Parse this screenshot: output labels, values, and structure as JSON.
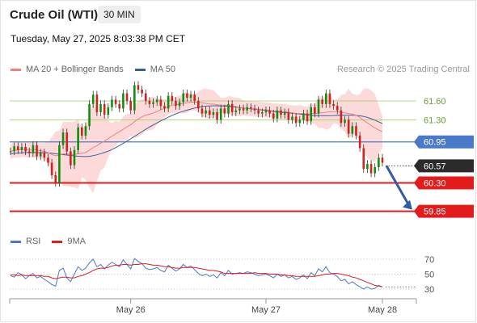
{
  "header": {
    "title": "Crude Oil (WTI)",
    "interval": "30 MIN",
    "datetime": "Tuesday, May 27, 2025 8:03:38 PM CET",
    "credit": "Research © 2025 Trading Central"
  },
  "legend": {
    "ma20": "MA 20 + Bollinger Bands",
    "ma50": "MA 50",
    "rsi": "RSI",
    "ma9": "9MA"
  },
  "colors": {
    "ma20": "#f08080",
    "ma50": "#3a5e9c",
    "band": "#fbd3d3",
    "resistance": "#9acd5c",
    "pivot": "#4a79c9",
    "support": "#e31b1b",
    "current": "#2b2b2b",
    "arrow": "#2d5ea7",
    "up": "#0e8f0e",
    "down": "#d0231d",
    "rsi": "#4a79c9"
  },
  "chart_data": [
    {
      "type": "candlestick",
      "x_ticks": [
        "May 26",
        "May 27",
        "May 28"
      ],
      "ylim": [
        59.55,
        61.92
      ],
      "levels": [
        {
          "value": 61.6,
          "label": "61.60",
          "kind": "resistance"
        },
        {
          "value": 61.3,
          "label": "61.30",
          "kind": "resistance"
        },
        {
          "value": 60.95,
          "label": "60.95",
          "kind": "pivot"
        },
        {
          "value": 60.57,
          "label": "60.57",
          "kind": "current"
        },
        {
          "value": 60.3,
          "label": "60.30",
          "kind": "support"
        },
        {
          "value": 59.85,
          "label": "59.85",
          "kind": "support"
        }
      ],
      "forecast_arrow": {
        "from": 60.57,
        "to": 59.85
      },
      "closes": [
        60.8,
        60.88,
        60.82,
        60.87,
        60.8,
        60.77,
        60.9,
        60.72,
        60.78,
        60.7,
        60.62,
        60.42,
        60.3,
        60.9,
        61.1,
        60.8,
        60.58,
        60.82,
        61.18,
        61.05,
        61.2,
        61.55,
        61.7,
        61.42,
        61.55,
        61.38,
        61.5,
        61.62,
        61.55,
        61.48,
        61.72,
        61.6,
        61.45,
        61.85,
        61.78,
        61.72,
        61.6,
        61.55,
        61.58,
        61.62,
        61.52,
        61.48,
        61.68,
        61.6,
        61.52,
        61.58,
        61.72,
        61.65,
        61.7,
        61.6,
        61.48,
        61.4,
        61.45,
        61.38,
        61.42,
        61.3,
        61.48,
        61.4,
        61.55,
        61.42,
        61.45,
        61.48,
        61.45,
        61.5,
        61.48,
        61.45,
        61.4,
        61.42,
        61.45,
        61.4,
        61.32,
        61.45,
        61.38,
        61.42,
        61.3,
        61.35,
        61.25,
        61.3,
        61.4,
        61.28,
        61.5,
        61.4,
        61.62,
        61.55,
        61.72,
        61.55,
        61.52,
        61.45,
        61.25,
        61.3,
        61.08,
        61.2,
        61.05,
        60.85,
        60.52,
        60.6,
        60.45,
        60.55,
        60.7,
        60.62
      ],
      "ma20": [
        60.8,
        60.82,
        60.82,
        60.83,
        60.83,
        60.82,
        60.83,
        60.82,
        60.81,
        60.8,
        60.78,
        60.75,
        60.73,
        60.74,
        60.76,
        60.76,
        60.75,
        60.75,
        60.76,
        60.77,
        60.78,
        60.82,
        60.86,
        60.89,
        60.93,
        60.96,
        61.0,
        61.04,
        61.08,
        61.11,
        61.15,
        61.19,
        61.22,
        61.27,
        61.31,
        61.35,
        61.37,
        61.39,
        61.41,
        61.43,
        61.46,
        61.48,
        61.51,
        61.53,
        61.54,
        61.55,
        61.56,
        61.57,
        61.58,
        61.58,
        61.58,
        61.57,
        61.56,
        61.55,
        61.55,
        61.54,
        61.53,
        61.53,
        61.53,
        61.52,
        61.51,
        61.5,
        61.49,
        61.48,
        61.48,
        61.47,
        61.47,
        61.46,
        61.46,
        61.45,
        61.44,
        61.44,
        61.43,
        61.43,
        61.42,
        61.41,
        61.4,
        61.4,
        61.4,
        61.39,
        61.4,
        61.4,
        61.41,
        61.41,
        61.42,
        61.43,
        61.43,
        61.43,
        61.42,
        61.41,
        61.4,
        61.39,
        61.37,
        61.34,
        61.29,
        61.25,
        61.21,
        61.17,
        61.14,
        61.11
      ],
      "rsi": [
        48,
        46,
        52,
        49,
        44,
        48,
        51,
        45,
        47,
        43,
        40,
        36,
        34,
        55,
        58,
        45,
        40,
        50,
        60,
        55,
        58,
        65,
        70,
        60,
        63,
        57,
        62,
        66,
        63,
        60,
        69,
        63,
        57,
        71,
        67,
        64,
        58,
        56,
        57,
        59,
        55,
        53,
        62,
        58,
        54,
        57,
        63,
        59,
        61,
        56,
        51,
        48,
        50,
        47,
        49,
        45,
        52,
        48,
        55,
        50,
        51,
        52,
        51,
        53,
        52,
        50,
        48,
        49,
        50,
        48,
        45,
        50,
        47,
        49,
        45,
        47,
        43,
        45,
        49,
        44,
        52,
        48,
        57,
        53,
        60,
        52,
        50,
        47,
        41,
        43,
        37,
        40,
        36,
        33,
        30,
        33,
        30,
        31,
        35,
        33
      ],
      "rsi_ma9": [
        49,
        49,
        48,
        49,
        48,
        48,
        48,
        48,
        48,
        47,
        47,
        45,
        44,
        45,
        46,
        46,
        45,
        45,
        47,
        48,
        50,
        52,
        55,
        57,
        58,
        58,
        59,
        61,
        62,
        62,
        63,
        63,
        62,
        63,
        63,
        64,
        64,
        63,
        62,
        62,
        61,
        60,
        60,
        59,
        58,
        58,
        59,
        59,
        59,
        59,
        58,
        57,
        56,
        55,
        55,
        54,
        53,
        51,
        51,
        51,
        51,
        51,
        51,
        51,
        51,
        52,
        51,
        51,
        51,
        50,
        50,
        50,
        49,
        49,
        48,
        48,
        47,
        47,
        47,
        47,
        47,
        47,
        48,
        49,
        50,
        50,
        51,
        51,
        50,
        49,
        48,
        46,
        45,
        43,
        41,
        39,
        37,
        35,
        34,
        33
      ],
      "rsi_levels": [
        70,
        50,
        30
      ]
    }
  ]
}
